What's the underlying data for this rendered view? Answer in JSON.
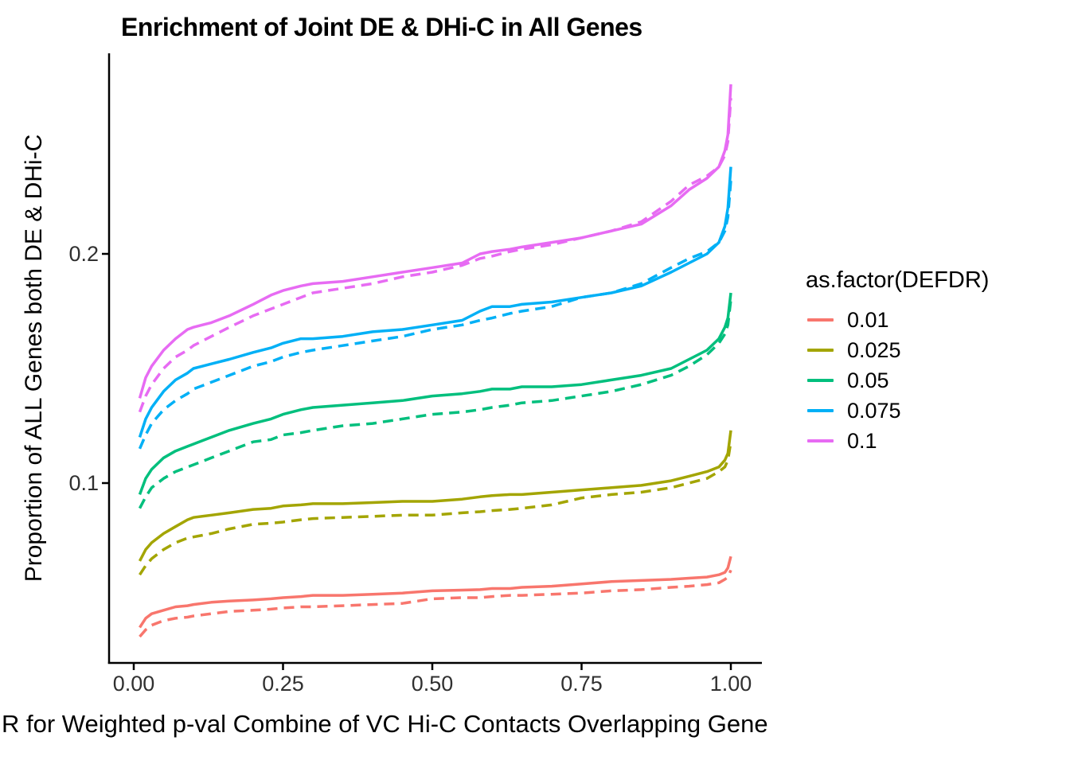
{
  "title": "Enrichment of Joint DE & DHi-C in All Genes",
  "x_axis": {
    "label_visible": "R for Weighted p-val Combine of VC Hi-C Contacts Overlapping Gene",
    "ticks": [
      "0.00",
      "0.25",
      "0.50",
      "0.75",
      "1.00"
    ],
    "tick_values": [
      0,
      0.25,
      0.5,
      0.75,
      1.0
    ]
  },
  "y_axis": {
    "label": "Proportion of ALL Genes both DE & DHi-C",
    "ticks": [
      "0.2",
      "0.1"
    ],
    "tick_values": [
      0.2,
      0.1
    ]
  },
  "legend": {
    "title": "as.factor(DEFDR)",
    "position": "right",
    "items": [
      {
        "label": "0.01",
        "color": "#F8766D"
      },
      {
        "label": "0.025",
        "color": "#A3A500"
      },
      {
        "label": "0.05",
        "color": "#00BF7D"
      },
      {
        "label": "0.075",
        "color": "#00B0F6"
      },
      {
        "label": "0.1",
        "color": "#E76BF3"
      }
    ]
  },
  "chart_data": {
    "type": "line",
    "title": "Enrichment of Joint DE & DHi-C in All Genes",
    "xlabel": "R for Weighted p-val Combine of VC Hi-C Contacts Overlapping Gene",
    "ylabel": "Proportion of ALL Genes both DE & DHi-C",
    "xlim": [
      0,
      1.02
    ],
    "ylim": [
      0.022,
      0.287
    ],
    "grid": false,
    "legend_position": "right",
    "x": [
      0.01,
      0.02,
      0.03,
      0.05,
      0.07,
      0.09,
      0.1,
      0.13,
      0.16,
      0.2,
      0.23,
      0.25,
      0.28,
      0.3,
      0.35,
      0.4,
      0.45,
      0.5,
      0.55,
      0.58,
      0.6,
      0.63,
      0.65,
      0.7,
      0.75,
      0.8,
      0.85,
      0.9,
      0.93,
      0.96,
      0.98,
      0.99,
      0.995,
      1.0
    ],
    "series": [
      {
        "name": "0.01",
        "linetype": "dashed",
        "color": "#F8766D",
        "values": [
          0.033,
          0.036,
          0.038,
          0.04,
          0.041,
          0.0415,
          0.042,
          0.043,
          0.044,
          0.0445,
          0.045,
          0.0455,
          0.046,
          0.046,
          0.0465,
          0.047,
          0.0475,
          0.0495,
          0.05,
          0.05,
          0.0505,
          0.051,
          0.051,
          0.0515,
          0.052,
          0.053,
          0.0535,
          0.0545,
          0.055,
          0.0557,
          0.0565,
          0.058,
          0.059,
          0.062
        ]
      },
      {
        "name": "0.01",
        "linetype": "solid",
        "color": "#F8766D",
        "values": [
          0.037,
          0.041,
          0.043,
          0.0445,
          0.046,
          0.0465,
          0.047,
          0.048,
          0.0485,
          0.049,
          0.0495,
          0.05,
          0.0505,
          0.051,
          0.051,
          0.0515,
          0.052,
          0.053,
          0.0533,
          0.0535,
          0.054,
          0.054,
          0.0545,
          0.055,
          0.056,
          0.057,
          0.0575,
          0.058,
          0.0585,
          0.059,
          0.06,
          0.061,
          0.063,
          0.068
        ]
      },
      {
        "name": "0.025",
        "linetype": "dashed",
        "color": "#A3A500",
        "values": [
          0.06,
          0.064,
          0.067,
          0.071,
          0.074,
          0.076,
          0.0765,
          0.078,
          0.08,
          0.082,
          0.0825,
          0.083,
          0.084,
          0.0845,
          0.085,
          0.0855,
          0.086,
          0.086,
          0.087,
          0.0875,
          0.088,
          0.0885,
          0.089,
          0.0905,
          0.0935,
          0.095,
          0.096,
          0.098,
          0.1,
          0.102,
          0.105,
          0.107,
          0.11,
          0.118
        ]
      },
      {
        "name": "0.025",
        "linetype": "solid",
        "color": "#A3A500",
        "values": [
          0.066,
          0.071,
          0.074,
          0.078,
          0.081,
          0.084,
          0.085,
          0.086,
          0.087,
          0.0885,
          0.089,
          0.09,
          0.0905,
          0.091,
          0.091,
          0.0915,
          0.092,
          0.092,
          0.093,
          0.094,
          0.0945,
          0.095,
          0.095,
          0.096,
          0.097,
          0.098,
          0.099,
          0.101,
          0.103,
          0.105,
          0.107,
          0.11,
          0.113,
          0.123
        ]
      },
      {
        "name": "0.05",
        "linetype": "dashed",
        "color": "#00BF7D",
        "values": [
          0.089,
          0.094,
          0.098,
          0.102,
          0.105,
          0.107,
          0.108,
          0.111,
          0.114,
          0.118,
          0.119,
          0.121,
          0.122,
          0.123,
          0.125,
          0.126,
          0.128,
          0.13,
          0.131,
          0.132,
          0.133,
          0.134,
          0.135,
          0.136,
          0.138,
          0.14,
          0.143,
          0.147,
          0.151,
          0.156,
          0.161,
          0.165,
          0.169,
          0.18
        ]
      },
      {
        "name": "0.05",
        "linetype": "solid",
        "color": "#00BF7D",
        "values": [
          0.095,
          0.102,
          0.106,
          0.111,
          0.114,
          0.116,
          0.117,
          0.12,
          0.123,
          0.126,
          0.128,
          0.13,
          0.132,
          0.133,
          0.134,
          0.135,
          0.136,
          0.138,
          0.139,
          0.14,
          0.141,
          0.141,
          0.142,
          0.142,
          0.143,
          0.145,
          0.147,
          0.15,
          0.154,
          0.158,
          0.163,
          0.168,
          0.172,
          0.183
        ]
      },
      {
        "name": "0.075",
        "linetype": "dashed",
        "color": "#00B0F6",
        "values": [
          0.115,
          0.121,
          0.126,
          0.132,
          0.136,
          0.139,
          0.141,
          0.144,
          0.147,
          0.151,
          0.153,
          0.155,
          0.157,
          0.158,
          0.16,
          0.162,
          0.164,
          0.167,
          0.169,
          0.171,
          0.172,
          0.174,
          0.175,
          0.177,
          0.181,
          0.183,
          0.187,
          0.194,
          0.198,
          0.201,
          0.205,
          0.21,
          0.216,
          0.232
        ]
      },
      {
        "name": "0.075",
        "linetype": "solid",
        "color": "#00B0F6",
        "values": [
          0.12,
          0.128,
          0.133,
          0.14,
          0.145,
          0.148,
          0.15,
          0.152,
          0.154,
          0.157,
          0.159,
          0.161,
          0.163,
          0.163,
          0.164,
          0.166,
          0.167,
          0.169,
          0.171,
          0.175,
          0.177,
          0.177,
          0.178,
          0.179,
          0.181,
          0.183,
          0.186,
          0.192,
          0.196,
          0.2,
          0.205,
          0.212,
          0.22,
          0.238
        ]
      },
      {
        "name": "0.1",
        "linetype": "dashed",
        "color": "#E76BF3",
        "values": [
          0.131,
          0.138,
          0.143,
          0.15,
          0.155,
          0.158,
          0.16,
          0.164,
          0.168,
          0.173,
          0.176,
          0.178,
          0.181,
          0.183,
          0.185,
          0.187,
          0.19,
          0.192,
          0.195,
          0.198,
          0.199,
          0.201,
          0.202,
          0.204,
          0.207,
          0.21,
          0.214,
          0.223,
          0.23,
          0.234,
          0.238,
          0.243,
          0.249,
          0.268
        ]
      },
      {
        "name": "0.1",
        "linetype": "solid",
        "color": "#E76BF3",
        "values": [
          0.137,
          0.146,
          0.151,
          0.158,
          0.163,
          0.167,
          0.168,
          0.17,
          0.173,
          0.178,
          0.182,
          0.184,
          0.186,
          0.187,
          0.188,
          0.19,
          0.192,
          0.194,
          0.196,
          0.2,
          0.201,
          0.202,
          0.203,
          0.205,
          0.207,
          0.21,
          0.213,
          0.221,
          0.228,
          0.233,
          0.238,
          0.245,
          0.252,
          0.274
        ]
      }
    ]
  }
}
